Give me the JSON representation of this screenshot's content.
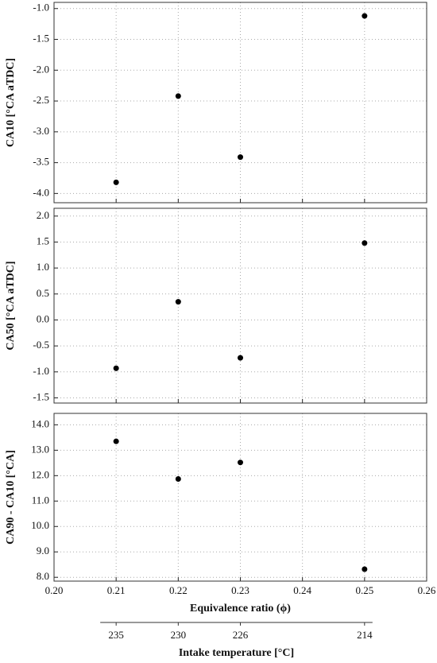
{
  "chart_data": [
    {
      "type": "scatter",
      "ylabel": "CA10 [°CA aTDC]",
      "color": "#000000",
      "grid": true,
      "x": [
        0.21,
        0.22,
        0.23,
        0.25
      ],
      "values": [
        -3.82,
        -2.42,
        -3.41,
        -1.12
      ],
      "xlim": [
        0.2,
        0.26
      ],
      "xticks": [
        {
          "value": 0.2,
          "label": "0.20"
        },
        0.21,
        0.22,
        0.23,
        0.24,
        0.25,
        0.26
      ],
      "ylim": [
        -4.15,
        -0.9
      ],
      "yticks": [
        {
          "value": -4.0,
          "label": "-4.0"
        },
        -3.5,
        {
          "value": -3.0,
          "label": "-3.0"
        },
        -2.5,
        {
          "value": -2.0,
          "label": "-2.0"
        },
        -1.5,
        {
          "value": -1.0,
          "label": "-1.0"
        }
      ]
    },
    {
      "type": "scatter",
      "ylabel": "CA50 [°CA aTDC]",
      "color": "#000000",
      "grid": true,
      "x": [
        0.21,
        0.22,
        0.23,
        0.25
      ],
      "values": [
        -0.93,
        0.35,
        -0.73,
        1.48
      ],
      "xlim": [
        0.2,
        0.26
      ],
      "xticks": [
        {
          "value": 0.2,
          "label": "0.20"
        },
        0.21,
        0.22,
        0.23,
        0.24,
        0.25,
        0.26
      ],
      "ylim": [
        -1.6,
        2.15
      ],
      "yticks": [
        -1.5,
        {
          "value": -1.0,
          "label": "-1.0"
        },
        -0.5,
        {
          "value": 0.0,
          "label": "0.0"
        },
        0.5,
        {
          "value": 1.0,
          "label": "1.0"
        },
        1.5,
        {
          "value": 2.0,
          "label": "2.0"
        }
      ]
    },
    {
      "type": "scatter",
      "ylabel": "CA90 - CA10 [°CA]",
      "xlabel": "Equivalence ratio (ϕ)",
      "color": "#000000",
      "grid": true,
      "x": [
        0.21,
        0.22,
        0.23,
        0.25
      ],
      "values": [
        13.35,
        11.87,
        12.52,
        8.32
      ],
      "xlim": [
        0.2,
        0.26
      ],
      "xticks": [
        {
          "value": 0.2,
          "label": "0.20"
        },
        0.21,
        0.22,
        0.23,
        0.24,
        0.25,
        0.26
      ],
      "ylim": [
        7.85,
        14.45
      ],
      "yticks": [
        {
          "value": 8.0,
          "label": "8.0"
        },
        {
          "value": 9.0,
          "label": "9.0"
        },
        {
          "value": 10.0,
          "label": "10.0"
        },
        {
          "value": 11.0,
          "label": "11.0"
        },
        {
          "value": 12.0,
          "label": "12.0"
        },
        {
          "value": 13.0,
          "label": "13.0"
        },
        {
          "value": 14.0,
          "label": "14.0"
        }
      ],
      "x2label": "Intake temperature [°C]",
      "x2_at": [
        0.21,
        0.22,
        0.23,
        0.25
      ],
      "x2_labels": [
        235,
        230,
        226,
        214
      ]
    }
  ]
}
